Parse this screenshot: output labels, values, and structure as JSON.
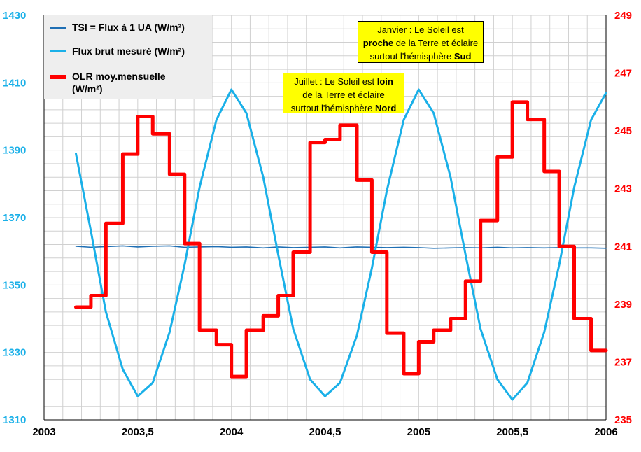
{
  "chart_data": {
    "type": "line",
    "x_ticks": [
      "2003",
      "2003,5",
      "2004",
      "2004,5",
      "2005",
      "2005,5",
      "2006"
    ],
    "x_range": [
      2003,
      2006
    ],
    "y_left_ticks": [
      "1310",
      "1330",
      "1350",
      "1370",
      "1390",
      "1410",
      "1430"
    ],
    "y_left_range": [
      1310,
      1430
    ],
    "y_right_ticks": [
      "235",
      "237",
      "239",
      "241",
      "243",
      "245",
      "247",
      "249"
    ],
    "y_right_range": [
      235,
      249
    ],
    "grid": true,
    "colors": {
      "tsi": "#1f6fb4",
      "flux": "#1ab0e8",
      "olr": "#ff0000",
      "left_axis": "#1ab0e8",
      "right_axis": "#ff0000",
      "callout_bg": "#ffff00",
      "legend_bg": "#eeeeee"
    },
    "series": [
      {
        "name": "TSI = Flux à 1 UA (W/m²)",
        "axis": "left",
        "x": [
          2003.17,
          2003.25,
          2003.33,
          2003.42,
          2003.5,
          2003.58,
          2003.67,
          2003.75,
          2003.83,
          2003.92,
          2004.0,
          2004.08,
          2004.17,
          2004.25,
          2004.33,
          2004.42,
          2004.5,
          2004.58,
          2004.67,
          2004.75,
          2004.83,
          2004.92,
          2005.0,
          2005.08,
          2005.17,
          2005.25,
          2005.33,
          2005.42,
          2005.5,
          2005.58,
          2005.67,
          2005.75,
          2005.83,
          2005.92,
          2006.0
        ],
        "values": [
          1361.5,
          1361.2,
          1361.4,
          1361.6,
          1361.3,
          1361.5,
          1361.6,
          1361.2,
          1361.3,
          1361.4,
          1361.2,
          1361.3,
          1361.0,
          1361.3,
          1361.1,
          1361.2,
          1361.3,
          1361.0,
          1361.3,
          1361.2,
          1361.1,
          1361.2,
          1361.1,
          1360.9,
          1361.0,
          1361.1,
          1361.0,
          1361.2,
          1361.0,
          1361.1,
          1361.0,
          1361.1,
          1361.0,
          1361.0,
          1360.9
        ]
      },
      {
        "name": "Flux brut mesuré (W/m²)",
        "axis": "left",
        "x": [
          2003.17,
          2003.25,
          2003.33,
          2003.42,
          2003.5,
          2003.58,
          2003.67,
          2003.75,
          2003.83,
          2003.92,
          2004.0,
          2004.08,
          2004.17,
          2004.25,
          2004.33,
          2004.42,
          2004.5,
          2004.58,
          2004.67,
          2004.75,
          2004.83,
          2004.92,
          2005.0,
          2005.08,
          2005.17,
          2005.25,
          2005.33,
          2005.42,
          2005.5,
          2005.58,
          2005.67,
          2005.75,
          2005.83,
          2005.92,
          2006.0
        ],
        "values": [
          1389,
          1366,
          1342,
          1325,
          1317,
          1321,
          1336,
          1356,
          1379,
          1399,
          1408,
          1401,
          1382,
          1359,
          1337,
          1322,
          1317,
          1321,
          1335,
          1355,
          1378,
          1399,
          1408,
          1401,
          1382,
          1359,
          1337,
          1322,
          1316,
          1321,
          1336,
          1356,
          1379,
          1399,
          1407
        ]
      },
      {
        "name": "OLR moy.mensuelle (W/m²)",
        "axis": "right",
        "x": [
          2003.17,
          2003.25,
          2003.33,
          2003.42,
          2003.5,
          2003.58,
          2003.67,
          2003.75,
          2003.83,
          2003.92,
          2004.0,
          2004.08,
          2004.17,
          2004.25,
          2004.33,
          2004.42,
          2004.5,
          2004.58,
          2004.67,
          2004.75,
          2004.83,
          2004.92,
          2005.0,
          2005.08,
          2005.17,
          2005.25,
          2005.33,
          2005.42,
          2005.5,
          2005.58,
          2005.67,
          2005.75,
          2005.83,
          2005.92,
          2006.0
        ],
        "values": [
          238.9,
          239.3,
          241.8,
          244.2,
          245.5,
          244.9,
          243.5,
          241.1,
          238.1,
          237.6,
          236.5,
          238.1,
          238.6,
          239.3,
          240.8,
          244.6,
          244.7,
          245.2,
          243.3,
          240.8,
          238.0,
          236.6,
          237.7,
          238.1,
          238.5,
          239.8,
          241.9,
          244.1,
          246.0,
          245.4,
          243.6,
          241.0,
          238.5,
          237.4,
          237.4
        ]
      }
    ]
  },
  "legend": {
    "tsi_label": "TSI = Flux à 1 UA (W/m²)",
    "flux_label": "Flux brut mesuré (W/m²)",
    "olr_label": "OLR moy.mensuelle",
    "olr_label_unit": "(W/m²)"
  },
  "callouts": {
    "july": {
      "line1_a": "Juillet : Le Soleil est ",
      "line1_b": "loin",
      "line2": "de la Terre et éclaire",
      "line3_a": "surtout l'hémisphère ",
      "line3_b": "Nord"
    },
    "january": {
      "line1": "Janvier : Le Soleil est",
      "line2_a": "proche",
      "line2_b": " de la Terre et éclaire",
      "line3_a": "surtout l'hémisphère ",
      "line3_b": "Sud"
    }
  }
}
